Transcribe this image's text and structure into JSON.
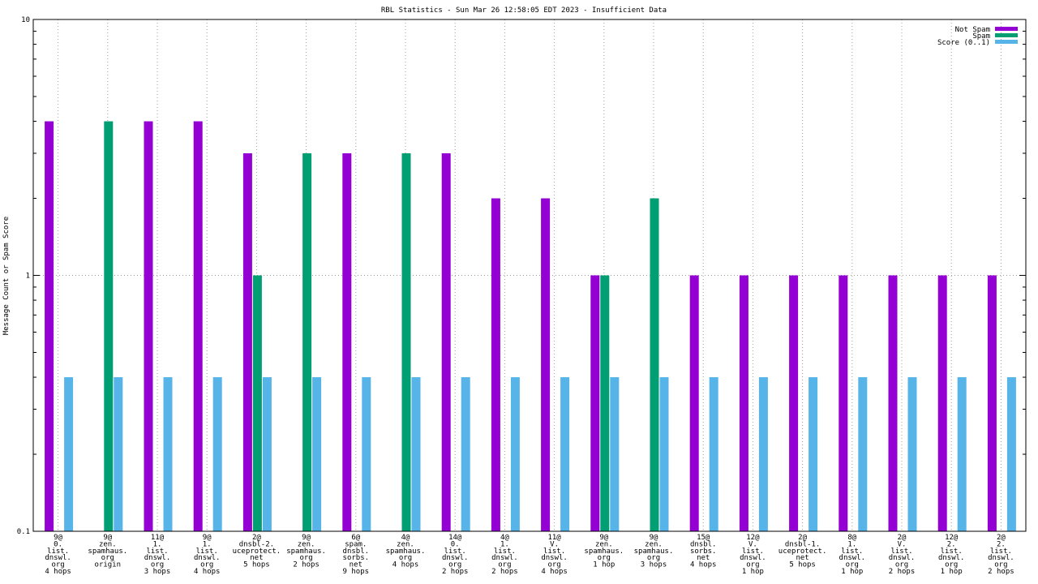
{
  "chart_data": {
    "type": "bar",
    "title": "RBL Statistics - Sun Mar 26 12:58:05 EDT 2023 - Insufficient Data",
    "xlabel": "",
    "ylabel": "Message Count or Spam Score",
    "yscale": "log",
    "ylim": [
      0.1,
      10
    ],
    "yticks": [
      "0.1",
      "1",
      "10"
    ],
    "grid": true,
    "legend_position": "top-right",
    "categories": [
      [
        "9@",
        "0.",
        "list.",
        "dnswl.",
        "org",
        "4 hops"
      ],
      [
        "9@",
        "zen.",
        "spamhaus.",
        "org",
        "origin"
      ],
      [
        "11@",
        "1.",
        "list.",
        "dnswl.",
        "org",
        "3 hops"
      ],
      [
        "9@",
        "1.",
        "list.",
        "dnswl.",
        "org",
        "4 hops"
      ],
      [
        "2@",
        "dnsbl-2.",
        "uceprotect.",
        "net",
        "5 hops"
      ],
      [
        "9@",
        "zen.",
        "spamhaus.",
        "org",
        "2 hops"
      ],
      [
        "6@",
        "spam.",
        "dnsbl.",
        "sorbs.",
        "net",
        "9 hops"
      ],
      [
        "4@",
        "zen.",
        "spamhaus.",
        "org",
        "4 hops"
      ],
      [
        "14@",
        "0.",
        "list.",
        "dnswl.",
        "org",
        "2 hops"
      ],
      [
        "4@",
        "1.",
        "list.",
        "dnswl.",
        "org",
        "2 hops"
      ],
      [
        "11@",
        "V.",
        "list.",
        "dnswl.",
        "org",
        "4 hops"
      ],
      [
        "9@",
        "zen.",
        "spamhaus.",
        "org",
        "1 hop"
      ],
      [
        "9@",
        "zen.",
        "spamhaus.",
        "org",
        "3 hops"
      ],
      [
        "15@",
        "dnsbl.",
        "sorbs.",
        "net",
        "4 hops"
      ],
      [
        "12@",
        "V.",
        "list.",
        "dnswl.",
        "org",
        "1 hop"
      ],
      [
        "2@",
        "dnsbl-1.",
        "uceprotect.",
        "net",
        "5 hops"
      ],
      [
        "8@",
        "1.",
        "list.",
        "dnswl.",
        "org",
        "1 hop"
      ],
      [
        "2@",
        "V.",
        "list.",
        "dnswl.",
        "org",
        "2 hops"
      ],
      [
        "12@",
        "2.",
        "list.",
        "dnswl.",
        "org",
        "1 hop"
      ],
      [
        "2@",
        "2.",
        "list.",
        "dnswl.",
        "org",
        "2 hops"
      ]
    ],
    "series": [
      {
        "name": "Not Spam",
        "color": "#9400d3",
        "values": [
          4,
          null,
          4,
          4,
          3,
          null,
          3,
          null,
          3,
          2,
          2,
          1,
          null,
          1,
          1,
          1,
          1,
          1,
          1,
          1
        ]
      },
      {
        "name": "Spam",
        "color": "#009e73",
        "values": [
          null,
          4,
          null,
          null,
          1,
          3,
          null,
          3,
          null,
          null,
          null,
          1,
          2,
          null,
          null,
          null,
          null,
          null,
          null,
          null
        ]
      },
      {
        "name": "Score (0..1)",
        "color": "#56b4e9",
        "values": [
          0.4,
          0.4,
          0.4,
          0.4,
          0.4,
          0.4,
          0.4,
          0.4,
          0.4,
          0.4,
          0.4,
          0.4,
          0.4,
          0.4,
          0.4,
          0.4,
          0.4,
          0.4,
          0.4,
          0.4
        ]
      }
    ]
  }
}
